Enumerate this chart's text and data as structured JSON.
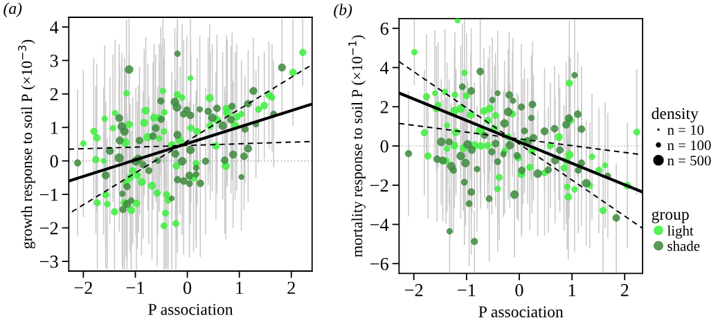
{
  "chart_data": [
    {
      "type": "bubble",
      "title": "(a)",
      "xlabel": "P association",
      "ylabel": "growth response to soil P (×10$^{−3}$)",
      "xlim": [
        -2.28,
        2.4
      ],
      "ylim": [
        -3.29,
        4.29
      ],
      "xticks": [
        -2,
        -1,
        0,
        1,
        2
      ],
      "yticks": [
        -3,
        -2,
        -1,
        0,
        1,
        2,
        3,
        4
      ],
      "marker": "circle",
      "ref_lines": [
        {
          "axis": "y",
          "value": 0,
          "color": "#999999",
          "line_style": "dotted"
        }
      ],
      "series": [
        {
          "color": "#3cf03c",
          "x": [
            2.22,
            2.03,
            1.57,
            1.63,
            1.48,
            1.37,
            1.04,
            0.95,
            0.92,
            0.77,
            0.57,
            0.55,
            0.74,
            0.43,
            0.44,
            0.06,
            -0.1,
            -0.19,
            0.07,
            0.19,
            -0.14,
            -0.3,
            -0.47,
            -0.44,
            -0.54,
            -0.45,
            -0.64,
            -0.8,
            -0.83,
            -0.76,
            -0.54,
            -0.68,
            -0.88,
            -0.96,
            -1.05,
            -1.1,
            -1.18,
            -1.12,
            -1.19,
            -1.17,
            -1.39,
            -1.43,
            -1.8,
            -1.74,
            -1.59,
            -2.0,
            -1.76,
            -1.61,
            -1.57,
            -1.54,
            -1.73,
            -1.4,
            -1.08,
            -0.98,
            -1.21,
            -0.42,
            -0.45,
            -0.22,
            -0.4,
            -0.37,
            -0.58,
            0.12,
            0.17,
            -0.21,
            0.75
          ],
          "values": [
            3.24,
            2.64,
            1.97,
            1.89,
            1.65,
            1.54,
            1.4,
            1.31,
            1.05,
            1.43,
            1.23,
            0.45,
            -0.15,
            1.88,
            1.05,
            2.47,
            1.89,
            1.98,
            0.98,
            0.88,
            0.61,
            0.47,
            2.09,
            1.45,
            1.29,
            0.88,
            1.29,
            1.5,
            1.14,
            0.71,
            0.67,
            -0.74,
            -0.63,
            -0.43,
            -0.29,
            -0.5,
            -0.67,
            1.09,
            0.55,
            2.02,
            1.43,
            0.98,
            0.88,
            0.69,
            1.26,
            0.52,
            0.04,
            0.0,
            -1.01,
            -1.29,
            -1.25,
            -1.52,
            -1.47,
            -1.27,
            -1.25,
            -1.56,
            -1.94,
            -1.87,
            -1.01,
            -1.18,
            -0.96,
            -0.5,
            -0.08,
            -0.15,
            1.57
          ],
          "sizes": [
            0.61,
            0.68,
            0.68,
            0.47,
            0.68,
            0.55,
            0.47,
            0.68,
            0.82,
            0.89,
            0.76,
            0.68,
            0.82,
            0.76,
            0.68,
            0.39,
            0.47,
            0.61,
            0.61,
            0.61,
            0.76,
            0.76,
            0.47,
            0.47,
            0.61,
            0.47,
            0.76,
            0.76,
            0.76,
            0.89,
            0.47,
            0.76,
            0.76,
            0.61,
            0.61,
            0.68,
            0.61,
            0.68,
            0.89,
            0.47,
            0.47,
            0.47,
            0.61,
            0.68,
            0.47,
            0.47,
            0.61,
            0.39,
            0.61,
            0.47,
            0.55,
            0.61,
            0.76,
            0.68,
            0.68,
            0.55,
            0.55,
            0.55,
            0.61,
            0.55,
            0.61,
            0.76,
            0.61,
            0.68,
            0.61
          ],
          "errors": [
            1.0,
            1.6,
            1.6,
            1.6,
            1.6,
            1.6,
            1.6,
            2.2,
            2.2,
            2.2,
            2.2,
            2.2,
            2.2,
            2.2,
            2.2,
            1.78,
            2.2,
            2.2,
            2.2,
            2.2,
            2.2,
            2.2,
            2.16,
            2.2,
            2.2,
            2.2,
            2.2,
            2.2,
            2.2,
            2.2,
            2.2,
            2.2,
            2.2,
            2.2,
            2.2,
            2.2,
            2.2,
            2.2,
            2.2,
            2.2,
            2.2,
            2.2,
            2.2,
            2.2,
            2.2,
            2.2,
            2.2,
            2.2,
            2.2,
            1.96,
            2.0,
            1.73,
            1.78,
            1.98,
            2.0,
            1.69,
            1.31,
            1.38,
            2.2,
            2.07,
            2.2,
            2.2,
            2.2,
            2.2,
            2.2
          ]
        },
        {
          "color": "#3d8a3d",
          "x": [
            1.82,
            1.27,
            1.17,
            1.66,
            1.32,
            0.86,
            0.84,
            1.11,
            0.68,
            0.57,
            0.48,
            0.4,
            0.24,
            1.17,
            0.88,
            1.09,
            0.72,
            1.04,
            0.35,
            0.25,
            0.17,
            0.04,
            0.04,
            -0.07,
            -0.19,
            -0.1,
            -0.23,
            -0.2,
            -0.24,
            -0.01,
            -0.07,
            0.06,
            -0.19,
            0.06,
            -0.19,
            -1.12,
            -0.51,
            -0.61,
            -0.5,
            -0.66,
            -0.92,
            -0.99,
            -0.94,
            -1.31,
            -1.26,
            -1.21,
            -1.3,
            -1.31,
            -1.49,
            -2.11,
            -1.57,
            -1.25,
            -1.16,
            -1.16,
            -1.24,
            -1.08,
            -0.74,
            -0.85,
            -0.57,
            -0.3,
            0.17
          ],
          "values": [
            2.79,
            2.09,
            1.71,
            1.4,
            1.1,
            1.63,
            1.23,
            0.95,
            1.05,
            1.57,
            1.29,
            1.48,
            1.54,
            0.37,
            0.19,
            0.14,
            0.02,
            -0.48,
            -0.01,
            -0.67,
            -0.21,
            -0.44,
            -0.68,
            -0.6,
            -0.56,
            -0.01,
            0.21,
            1.6,
            1.76,
            1.52,
            1.4,
            1.36,
            0.78,
            0.33,
            3.2,
            2.73,
            1.79,
            0.98,
            1.24,
            0.74,
            0.61,
            -0.01,
            0.06,
            1.28,
            1.03,
            0.88,
            0.61,
            0.09,
            0.3,
            -0.06,
            -0.43,
            -0.98,
            -0.77,
            -1.29,
            -1.45,
            -1.18,
            -0.29,
            -0.12,
            0.01,
            -1.12,
            -0.4
          ],
          "sizes": [
            0.76,
            0.76,
            0.68,
            0.55,
            0.47,
            0.61,
            0.68,
            0.61,
            0.89,
            0.68,
            0.89,
            0.61,
            0.47,
            0.76,
            0.76,
            0.68,
            0.68,
            0.39,
            0.61,
            0.68,
            0.47,
            0.76,
            0.55,
            0.68,
            0.61,
            0.89,
            0.76,
            0.89,
            0.89,
            0.61,
            0.61,
            0.68,
            0.76,
            0.89,
            0.47,
            0.89,
            0.61,
            0.76,
            0.61,
            0.68,
            0.68,
            1,
            0.89,
            0.76,
            0.89,
            0.89,
            0.76,
            1,
            0.76,
            0.61,
            0.76,
            0.47,
            0.61,
            0.76,
            0.61,
            0.47,
            0.61,
            0.61,
            0.47,
            0.39,
            0.47
          ],
          "errors": [
            1.46,
            1.6,
            1.6,
            1.6,
            1.6,
            2.2,
            2.2,
            1.6,
            2.2,
            2.2,
            2.2,
            2.2,
            2.2,
            1.6,
            2.2,
            1.6,
            2.2,
            1.6,
            2.2,
            2.2,
            2.2,
            2.2,
            2.2,
            2.2,
            2.2,
            2.2,
            2.2,
            2.2,
            2.2,
            2.2,
            2.2,
            2.2,
            2.2,
            2.2,
            1.05,
            1.52,
            2.2,
            2.2,
            2.2,
            2.2,
            2.2,
            2.2,
            2.2,
            2.2,
            2.2,
            2.2,
            2.2,
            2.2,
            2.2,
            2.2,
            2.2,
            2.2,
            2.2,
            1.96,
            1.8,
            2.07,
            2.2,
            2.2,
            2.2,
            2.13,
            2.2
          ]
        },
        {
          "type": "line",
          "marker": "none",
          "color": "#000000",
          "line_style": "solid",
          "x": [
            -2.28,
            2.4
          ],
          "values": [
            -0.6,
            1.7
          ]
        },
        {
          "type": "line",
          "marker": "none",
          "color": "#000000",
          "line_style": "dashed",
          "x": [
            -2.22,
            2.35
          ],
          "values": [
            -1.52,
            2.83
          ]
        },
        {
          "type": "line",
          "marker": "none",
          "color": "#000000",
          "line_style": "dashed",
          "x": [
            -2.28,
            2.4
          ],
          "values": [
            0.35,
            0.58
          ]
        }
      ]
    },
    {
      "type": "bubble",
      "title": "(b)",
      "xlabel": "P association",
      "ylabel": "mortality response to soil P (×10$^{−1}$)",
      "xlim": [
        -2.28,
        2.34
      ],
      "ylim": [
        -6.5,
        6.5
      ],
      "xticks": [
        -2,
        -1,
        0,
        1,
        2
      ],
      "yticks": [
        -6,
        -4,
        -2,
        0,
        2,
        4,
        6
      ],
      "marker": "circle",
      "legend": "right",
      "legend_title": "group",
      "annotations": [
        "density"
      ],
      "size_legend": [
        {
          "value": 10,
          "label": "n = 10"
        },
        {
          "value": 100,
          "label": "n = 100"
        },
        {
          "value": 500,
          "label": "n = 500"
        }
      ],
      "ref_lines": [
        {
          "axis": "y",
          "value": 0,
          "color": "#999999",
          "line_style": "dotted"
        }
      ],
      "series": [
        {
          "name": "light",
          "color": "#3cf03c",
          "x": [
            -1.17,
            -1.99,
            -1.04,
            0.95,
            2.23,
            -1.76,
            -1.6,
            -1.57,
            -1.41,
            -1.22,
            -1.11,
            -1.23,
            -1.0,
            -1.8,
            -1.73,
            -1.37,
            -1.37,
            -1.39,
            -1.2,
            -1.23,
            -1.06,
            -0.92,
            -0.74,
            -0.67,
            -0.56,
            -0.59,
            -0.45,
            -0.47,
            -0.6,
            -0.38,
            -0.41,
            0.93,
            0.91,
            1.05,
            1.34,
            1.59,
            2.05,
            1.51,
            1.38,
            1.63,
            0.95,
            0.85,
            0.97,
            0.75,
            0.59,
            0.04,
            0.2,
            0.48,
            0.24,
            -0.13,
            -0.21,
            -0.28,
            -0.02,
            0.07,
            -0.85,
            -0.73,
            -1.54,
            0.89
          ],
          "values": [
            6.4,
            4.78,
            3.73,
            3.2,
            0.71,
            2.51,
            2.69,
            1.91,
            2.76,
            2.61,
            1.91,
            1.78,
            2.56,
            0.67,
            -0.51,
            1.05,
            -0.14,
            -0.76,
            0.71,
            0.02,
            -0.11,
            1.59,
            0.77,
            1.78,
            1.91,
            1.3,
            1.55,
            0.9,
            0.02,
            -1.6,
            -2.19,
            -2.6,
            -2.08,
            -2.22,
            -2.02,
            -3.29,
            -2.02,
            -1.24,
            -0.55,
            -0.99,
            -0.45,
            -1.12,
            1.3,
            0.46,
            0.02,
            -1.44,
            -1.09,
            -1.37,
            -0.26,
            1.63,
            0.46,
            -0.26,
            -0.61,
            0.21,
            0.04,
            0.0,
            2.1,
            -0.76
          ],
          "sizes": [
            150,
            180,
            180,
            230,
            210,
            230,
            150,
            260,
            180,
            180,
            340,
            340,
            230,
            230,
            230,
            150,
            180,
            230,
            290,
            260,
            260,
            290,
            380,
            260,
            290,
            260,
            210,
            230,
            230,
            210,
            180,
            260,
            180,
            180,
            180,
            230,
            260,
            230,
            180,
            150,
            310,
            230,
            260,
            290,
            230,
            260,
            230,
            210,
            230,
            230,
            230,
            210,
            230,
            260,
            290,
            260,
            180,
            210
          ],
          "errors": [
            0.05,
            1.67,
            2.72,
            3.2,
            3.2,
            3.2,
            3.2,
            3.2,
            3.2,
            3.2,
            3.2,
            3.2,
            3.2,
            3.2,
            3.2,
            3.2,
            3.2,
            3.2,
            3.2,
            3.2,
            3.2,
            3.2,
            3.2,
            3.2,
            3.2,
            3.2,
            3.2,
            3.2,
            3.2,
            3.2,
            3.2,
            3.2,
            3.2,
            3.2,
            3.2,
            3.16,
            3.2,
            3.2,
            3.2,
            3.2,
            3.2,
            3.2,
            3.2,
            3.2,
            3.2,
            3.2,
            3.2,
            3.2,
            3.2,
            3.2,
            3.2,
            3.2,
            3.2,
            3.2,
            3.2,
            3.2,
            3.2,
            3.2
          ]
        },
        {
          "name": "shade",
          "color": "#3d8a3d",
          "x": [
            -0.74,
            1.05,
            -1.08,
            -0.91,
            -0.41,
            -0.19,
            -0.12,
            0.25,
            0.04,
            -0.21,
            -0.28,
            -0.51,
            1.11,
            0.94,
            0.89,
            1.18,
            0.67,
            0.48,
            0.23,
            0.1,
            0.16,
            0.27,
            0.68,
            0.77,
            0.55,
            0.35,
            1.18,
            1.12,
            1.27,
            1.68,
            1.84,
            -0.09,
            -0.57,
            -0.91,
            -0.95,
            -1.04,
            -1.32,
            -0.85,
            -2.1,
            -1.56,
            -1.48,
            -1.33,
            -1.29,
            -1.45,
            -1.25,
            -1.11,
            -1.02,
            -0.9,
            -0.8,
            -0.98,
            -0.3,
            -0.41,
            -0.52,
            -0.04,
            0.05,
            -0.18,
            -0.45,
            -0.66
          ],
          "values": [
            3.8,
            3.61,
            3.02,
            2.81,
            2.69,
            2.6,
            2.31,
            2.12,
            1.99,
            1.74,
            1.15,
            2.34,
            1.62,
            1.41,
            1.09,
            0.86,
            0.88,
            0.75,
            1.43,
            0.77,
            0.24,
            0.42,
            -0.74,
            -0.21,
            -1.22,
            -1.41,
            -0.87,
            -1.24,
            -1.9,
            -1.52,
            -3.67,
            -2.48,
            -2.69,
            -2.35,
            -2.94,
            -1.85,
            -4.35,
            -4.87,
            -0.39,
            -0.67,
            0.21,
            0.21,
            -1.03,
            -0.74,
            -1.24,
            -0.51,
            -0.87,
            -0.2,
            -1.18,
            0.08,
            -0.42,
            -0.8,
            -0.3,
            -0.49,
            -1.24,
            0.04,
            0.12,
            0.54
          ],
          "sizes": [
            260,
            180,
            210,
            260,
            150,
            260,
            180,
            260,
            230,
            340,
            340,
            180,
            260,
            290,
            290,
            260,
            260,
            290,
            180,
            210,
            340,
            260,
            290,
            260,
            230,
            340,
            230,
            210,
            340,
            180,
            260,
            340,
            210,
            260,
            210,
            210,
            180,
            230,
            230,
            260,
            340,
            230,
            340,
            290,
            230,
            340,
            340,
            290,
            180,
            340,
            180,
            210,
            230,
            230,
            260,
            340,
            260,
            230
          ],
          "errors": [
            2.65,
            2.84,
            3.2,
            3.2,
            3.2,
            3.2,
            3.2,
            3.2,
            3.2,
            3.2,
            3.2,
            3.2,
            3.2,
            3.2,
            3.2,
            3.2,
            3.2,
            3.2,
            3.2,
            3.2,
            3.2,
            3.2,
            3.2,
            3.2,
            3.2,
            3.2,
            3.2,
            3.2,
            3.2,
            3.2,
            2.78,
            3.2,
            3.2,
            3.2,
            3.2,
            3.2,
            2.1,
            1.58,
            3.2,
            3.2,
            3.2,
            3.2,
            3.2,
            3.1,
            3.2,
            3.2,
            3.2,
            3.2,
            3.2,
            3.2,
            3.2,
            3.2,
            3.2,
            3.2,
            3.2,
            3.2,
            3.2,
            3.2
          ]
        },
        {
          "type": "line",
          "marker": "none",
          "color": "#000000",
          "line_style": "solid",
          "x": [
            -2.28,
            2.34
          ],
          "values": [
            2.7,
            -2.35
          ]
        },
        {
          "type": "line",
          "marker": "none",
          "color": "#000000",
          "line_style": "dashed",
          "x": [
            -2.28,
            2.34
          ],
          "values": [
            4.3,
            -4.2
          ]
        },
        {
          "type": "line",
          "marker": "none",
          "color": "#000000",
          "line_style": "dashed",
          "x": [
            -2.28,
            2.34
          ],
          "values": [
            1.15,
            -0.45
          ]
        }
      ]
    }
  ]
}
